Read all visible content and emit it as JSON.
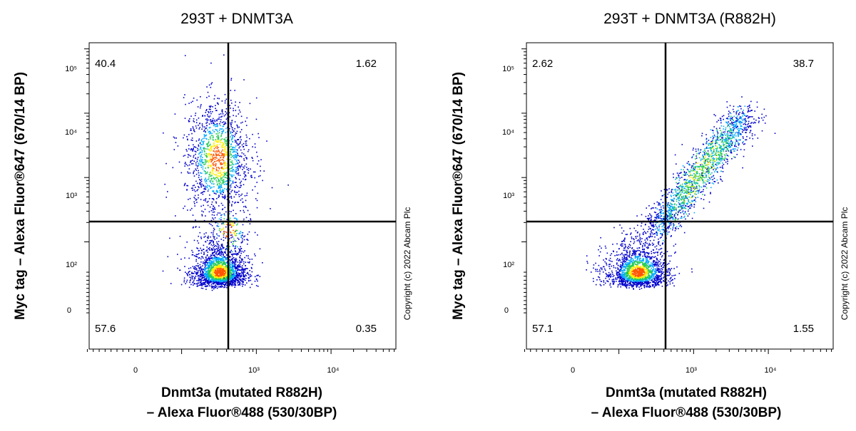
{
  "copyright": "Copyright (c) 2022 Abcam Plc",
  "colors": {
    "low": "#0000cc",
    "mid": "#00aaff",
    "high": "#22cc55",
    "peak": "#ffee00",
    "hot": "#ff5500",
    "gate": "#000000"
  },
  "chart_data": [
    {
      "type": "scatter",
      "title": "293T + DNMT3A",
      "xlabel_line1": "Dnmt3a (mutated R882H)",
      "xlabel_line2": "– Alexa Fluor®488 (530/30BP)",
      "ylabel": "Myc tag – Alexa Fluor®647 (670/14 BP)",
      "x_scale": "biexponential",
      "y_scale": "biexponential",
      "x_ticks": [
        "0",
        "10³",
        "10⁴"
      ],
      "y_ticks": [
        "0",
        "10²",
        "10³",
        "10⁴",
        "10⁵"
      ],
      "x_gate": 600,
      "y_gate": 400,
      "quadrants": {
        "top_left": "40.4",
        "top_right": "1.62",
        "bottom_left": "57.6",
        "bottom_right": "0.35"
      },
      "populations": [
        {
          "x_center": 320,
          "y_center": 40,
          "x_spread": 0.18,
          "y_spread": 0.22,
          "fraction": 0.55
        },
        {
          "x_center": 300,
          "y_center": 2000,
          "x_spread": 0.22,
          "y_spread": 0.45,
          "fraction": 0.4
        },
        {
          "x_center": 420,
          "y_center": 150,
          "x_spread": 0.15,
          "y_spread": 0.25,
          "fraction": 0.05
        }
      ]
    },
    {
      "type": "scatter",
      "title": "293T + DNMT3A (R882H)",
      "xlabel_line1": "Dnmt3a (mutated R882H)",
      "xlabel_line2": "– Alexa Fluor®488 (530/30BP)",
      "ylabel": "Myc tag – Alexa Fluor®647 (670/14 BP)",
      "x_scale": "biexponential",
      "y_scale": "biexponential",
      "x_ticks": [
        "0",
        "10³",
        "10⁴"
      ],
      "y_ticks": [
        "0",
        "10²",
        "10³",
        "10⁴",
        "10⁵"
      ],
      "x_gate": 600,
      "y_gate": 400,
      "quadrants": {
        "top_left": "2.62",
        "top_right": "38.7",
        "bottom_left": "57.1",
        "bottom_right": "1.55"
      },
      "populations": [
        {
          "x_center": 180,
          "y_center": 40,
          "x_spread": 0.2,
          "y_spread": 0.22,
          "fraction": 0.5
        },
        {
          "diagonal": true,
          "x_start": 300,
          "y_start": 150,
          "x_end": 5000,
          "y_end": 10000,
          "fraction": 0.5
        }
      ]
    }
  ]
}
